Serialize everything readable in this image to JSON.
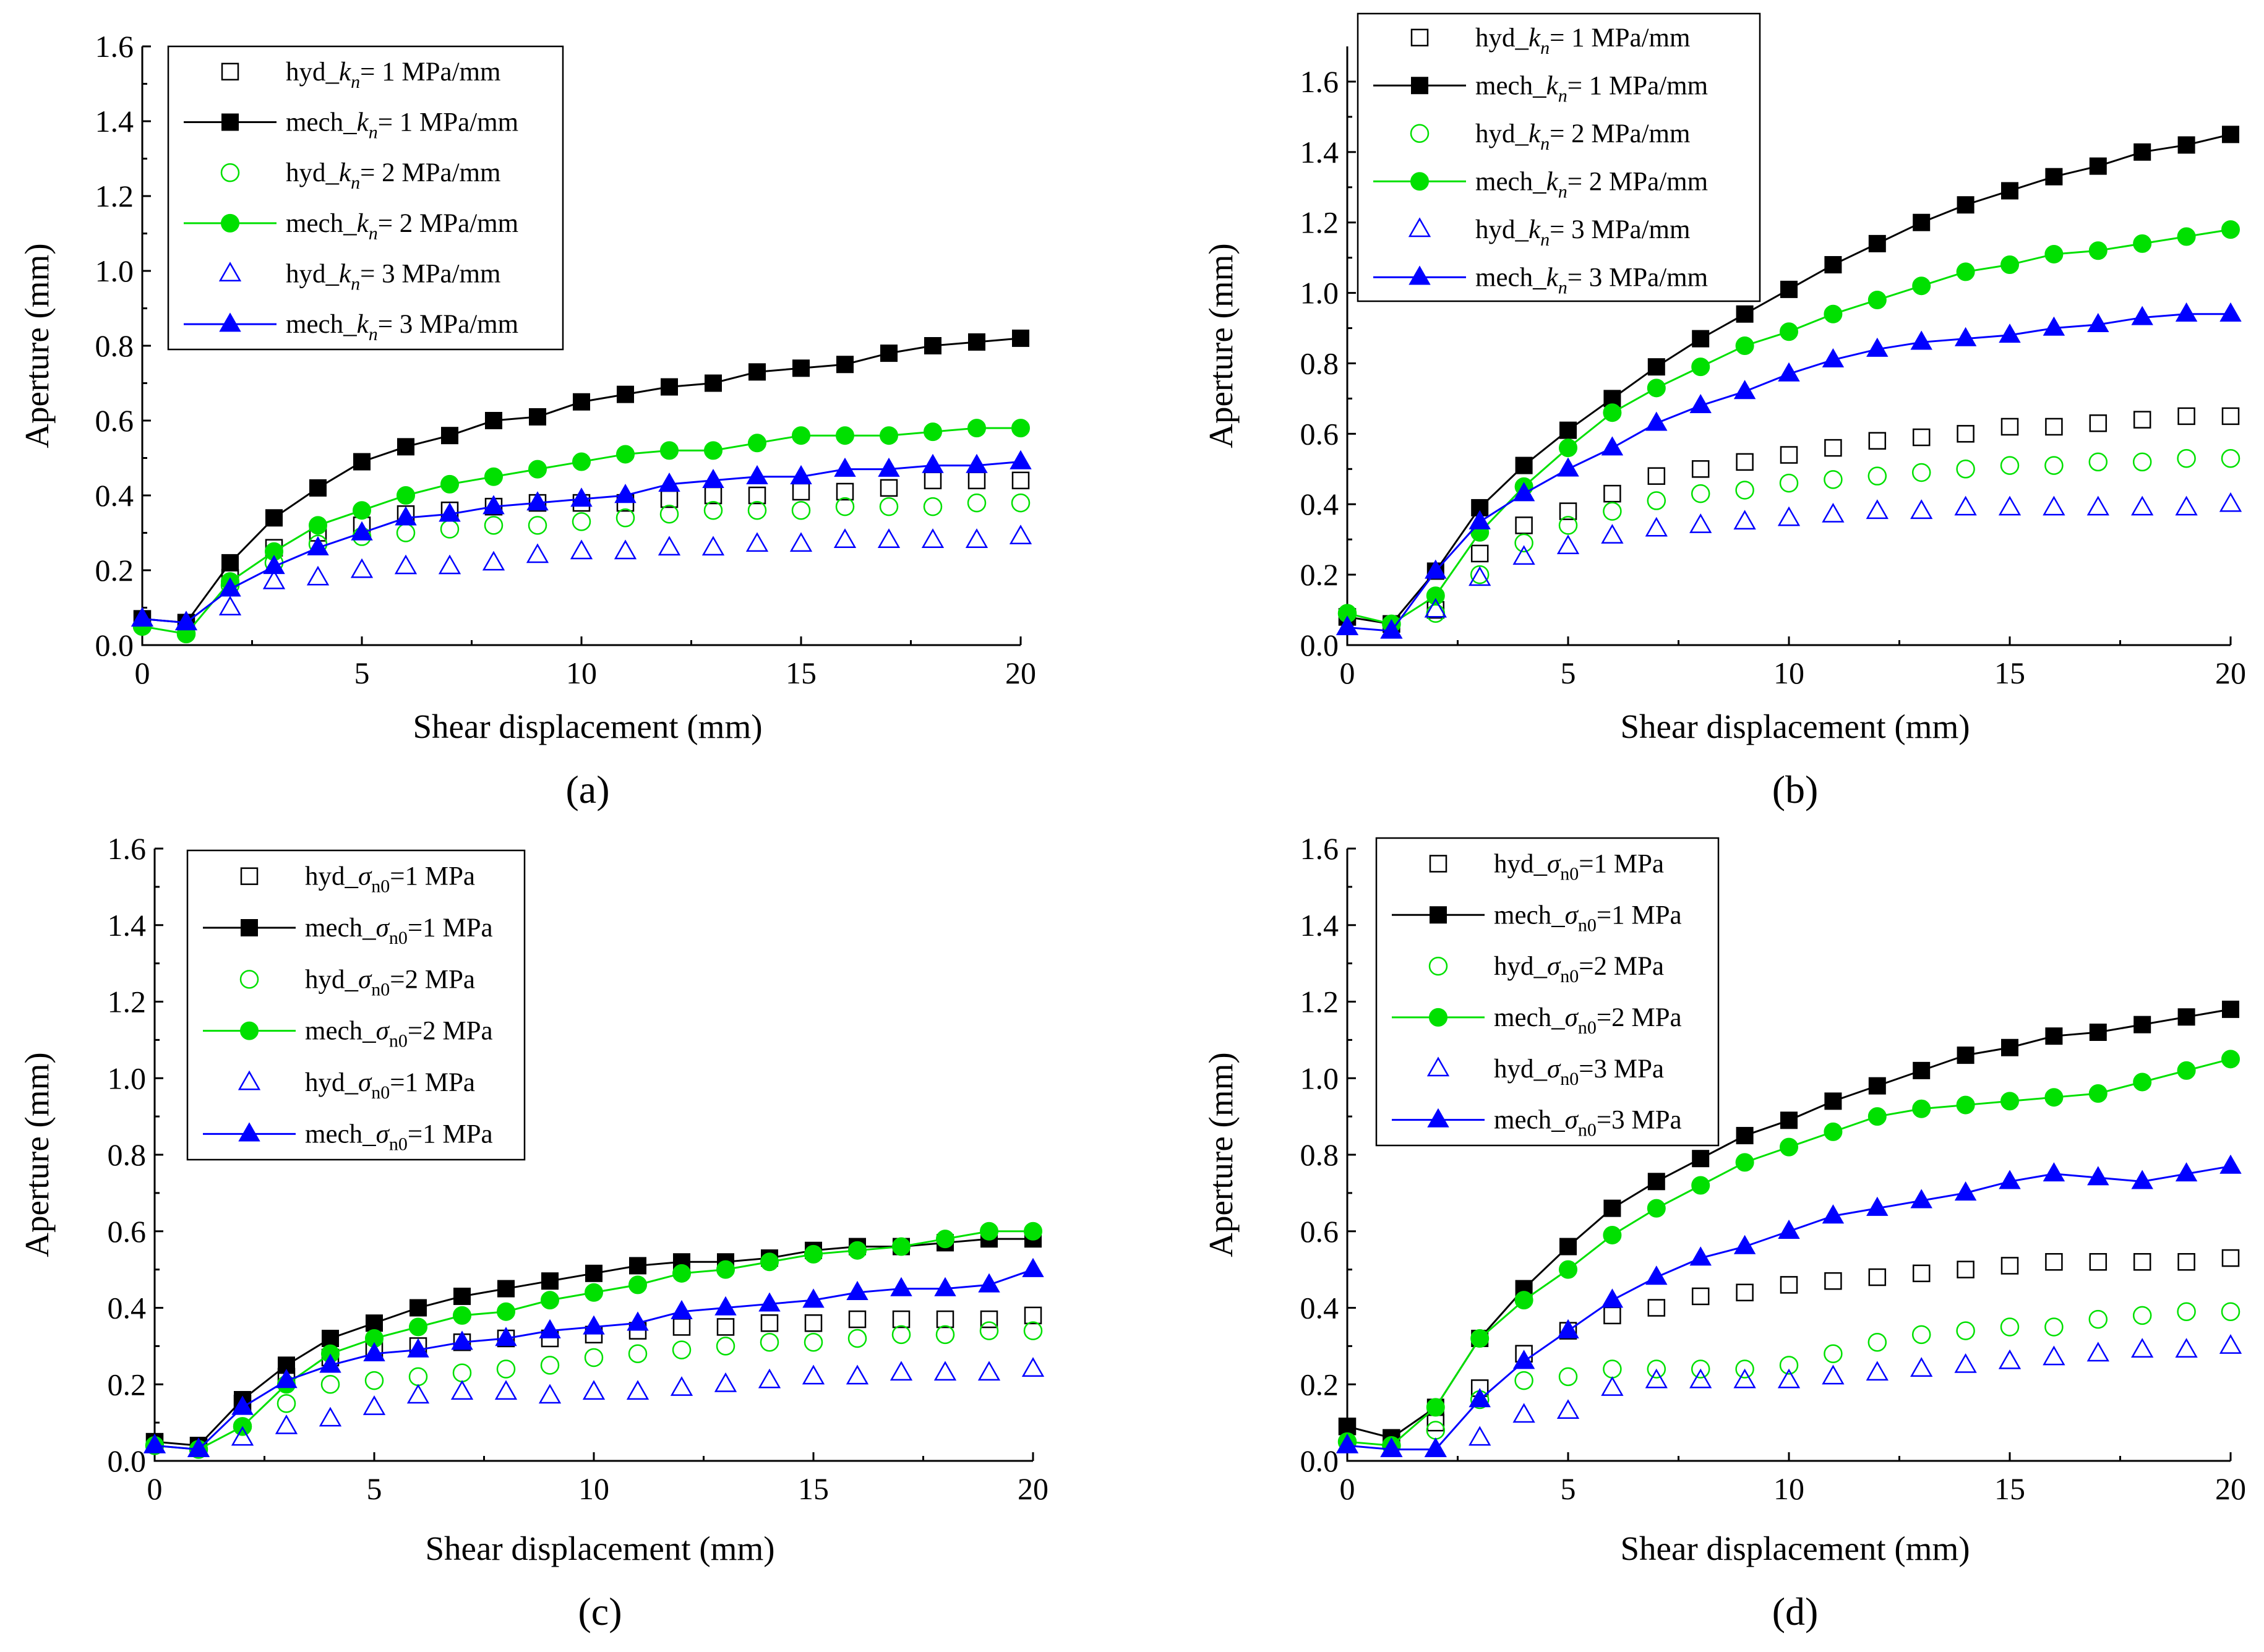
{
  "figure": {
    "colors": {
      "black": "#000000",
      "green": "#00e000",
      "blue": "#0000ff"
    }
  },
  "chart_data": [
    {
      "panel_label": "(a)",
      "type": "line",
      "xlabel": "Shear displacement (mm)",
      "ylabel": "Aperture (mm)",
      "xlim": [
        0,
        20
      ],
      "ylim": [
        0,
        1.6
      ],
      "xticks": [
        "0",
        "5",
        "10",
        "15",
        "20"
      ],
      "yticks": [
        "0.0",
        "0.2",
        "0.4",
        "0.6",
        "0.8",
        "1.0",
        "1.2",
        "1.4",
        "1.6"
      ],
      "x": [
        0,
        1,
        2,
        3,
        4,
        5,
        6,
        7,
        8,
        9,
        10,
        11,
        12,
        13,
        14,
        15,
        16,
        17,
        18,
        19,
        20
      ],
      "legend_position": "top-left",
      "series": [
        {
          "label_prefix": "hyd_",
          "label_var": "k",
          "label_sub": "n",
          "label_suffix": "= 1 MPa/mm",
          "color": "#000000",
          "marker": "square",
          "filled": false,
          "line": false,
          "values": [
            0.07,
            0.06,
            0.18,
            0.26,
            0.3,
            0.32,
            0.35,
            0.36,
            0.37,
            0.38,
            0.38,
            0.38,
            0.39,
            0.4,
            0.4,
            0.41,
            0.41,
            0.42,
            0.44,
            0.44,
            0.44
          ]
        },
        {
          "label_prefix": "mech_",
          "label_var": "k",
          "label_sub": "n",
          "label_suffix": "= 1 MPa/mm",
          "color": "#000000",
          "marker": "square",
          "filled": true,
          "line": true,
          "values": [
            0.07,
            0.06,
            0.22,
            0.34,
            0.42,
            0.49,
            0.53,
            0.56,
            0.6,
            0.61,
            0.65,
            0.67,
            0.69,
            0.7,
            0.73,
            0.74,
            0.75,
            0.78,
            0.8,
            0.81,
            0.82
          ]
        },
        {
          "label_prefix": " hyd_",
          "label_var": "k",
          "label_sub": "n",
          "label_suffix": "= 2 MPa/mm",
          "color": "#00e000",
          "marker": "circle",
          "filled": false,
          "line": false,
          "values": [
            0.05,
            0.03,
            0.16,
            0.22,
            0.27,
            0.29,
            0.3,
            0.31,
            0.32,
            0.32,
            0.33,
            0.34,
            0.35,
            0.36,
            0.36,
            0.36,
            0.37,
            0.37,
            0.37,
            0.38,
            0.38
          ]
        },
        {
          "label_prefix": "mech_",
          "label_var": "k",
          "label_sub": "n",
          "label_suffix": "= 2 MPa/mm",
          "color": "#00e000",
          "marker": "circle",
          "filled": true,
          "line": true,
          "values": [
            0.05,
            0.03,
            0.17,
            0.25,
            0.32,
            0.36,
            0.4,
            0.43,
            0.45,
            0.47,
            0.49,
            0.51,
            0.52,
            0.52,
            0.54,
            0.56,
            0.56,
            0.56,
            0.57,
            0.58,
            0.58
          ]
        },
        {
          "label_prefix": "hyd_",
          "label_var": "k",
          "label_sub": "n",
          "label_suffix": "= 3 MPa/mm",
          "color": "#0000ff",
          "marker": "triangle",
          "filled": false,
          "line": false,
          "values": [
            0.07,
            0.06,
            0.1,
            0.17,
            0.18,
            0.2,
            0.21,
            0.21,
            0.22,
            0.24,
            0.25,
            0.25,
            0.26,
            0.26,
            0.27,
            0.27,
            0.28,
            0.28,
            0.28,
            0.28,
            0.29
          ]
        },
        {
          "label_prefix": "mech_",
          "label_var": "k",
          "label_sub": "n",
          "label_suffix": "= 3 MPa/mm",
          "color": "#0000ff",
          "marker": "triangle",
          "filled": true,
          "line": true,
          "values": [
            0.07,
            0.06,
            0.15,
            0.21,
            0.26,
            0.3,
            0.34,
            0.35,
            0.37,
            0.38,
            0.39,
            0.4,
            0.43,
            0.44,
            0.45,
            0.45,
            0.47,
            0.47,
            0.48,
            0.48,
            0.49
          ]
        }
      ]
    },
    {
      "panel_label": "(b)",
      "type": "line",
      "xlabel": "Shear displacement (mm)",
      "ylabel": "Aperture (mm)",
      "xlim": [
        0,
        20
      ],
      "ylim": [
        0,
        1.7
      ],
      "xticks": [
        "0",
        "5",
        "10",
        "15",
        "20"
      ],
      "yticks": [
        "0.0",
        "0.2",
        "0.4",
        "0.6",
        "0.8",
        "1.0",
        "1.2",
        "1.4",
        "1.6"
      ],
      "x": [
        0,
        1,
        2,
        3,
        4,
        5,
        6,
        7,
        8,
        9,
        10,
        11,
        12,
        13,
        14,
        15,
        16,
        17,
        18,
        19,
        20
      ],
      "legend_position": "top-left",
      "series": [
        {
          "label_prefix": "hyd_",
          "label_var": "k",
          "label_sub": "n",
          "label_suffix": "= 1 MPa/mm",
          "color": "#000000",
          "marker": "square",
          "filled": false,
          "line": false,
          "values": [
            0.08,
            0.06,
            0.1,
            0.26,
            0.34,
            0.38,
            0.43,
            0.48,
            0.5,
            0.52,
            0.54,
            0.56,
            0.58,
            0.59,
            0.6,
            0.62,
            0.62,
            0.63,
            0.64,
            0.65,
            0.65
          ]
        },
        {
          "label_prefix": "mech_",
          "label_var": "k",
          "label_sub": "n",
          "label_suffix": "= 1 MPa/mm",
          "color": "#000000",
          "marker": "square",
          "filled": true,
          "line": true,
          "values": [
            0.08,
            0.06,
            0.21,
            0.39,
            0.51,
            0.61,
            0.7,
            0.79,
            0.87,
            0.94,
            1.01,
            1.08,
            1.14,
            1.2,
            1.25,
            1.29,
            1.33,
            1.36,
            1.4,
            1.42,
            1.45
          ]
        },
        {
          "label_prefix": "hyd_",
          "label_var": "k",
          "label_sub": "n",
          "label_suffix": "= 2 MPa/mm",
          "color": "#00e000",
          "marker": "circle",
          "filled": false,
          "line": false,
          "values": [
            0.09,
            0.06,
            0.09,
            0.2,
            0.29,
            0.34,
            0.38,
            0.41,
            0.43,
            0.44,
            0.46,
            0.47,
            0.48,
            0.49,
            0.5,
            0.51,
            0.51,
            0.52,
            0.52,
            0.53,
            0.53
          ]
        },
        {
          "label_prefix": "mech_",
          "label_var": "k",
          "label_sub": "n",
          "label_suffix": "= 2 MPa/mm",
          "color": "#00e000",
          "marker": "circle",
          "filled": true,
          "line": true,
          "values": [
            0.09,
            0.06,
            0.14,
            0.32,
            0.45,
            0.56,
            0.66,
            0.73,
            0.79,
            0.85,
            0.89,
            0.94,
            0.98,
            1.02,
            1.06,
            1.08,
            1.11,
            1.12,
            1.14,
            1.16,
            1.18
          ]
        },
        {
          "label_prefix": "hyd_",
          "label_var": "k",
          "label_sub": "n",
          "label_suffix": "= 3 MPa/mm",
          "color": "#0000ff",
          "marker": "triangle",
          "filled": false,
          "line": false,
          "values": [
            0.05,
            0.04,
            0.1,
            0.19,
            0.25,
            0.28,
            0.31,
            0.33,
            0.34,
            0.35,
            0.36,
            0.37,
            0.38,
            0.38,
            0.39,
            0.39,
            0.39,
            0.39,
            0.39,
            0.39,
            0.4
          ]
        },
        {
          "label_prefix": "mech_",
          "label_var": "k",
          "label_sub": "n",
          "label_suffix": "= 3 MPa/mm",
          "color": "#0000ff",
          "marker": "triangle",
          "filled": true,
          "line": true,
          "values": [
            0.05,
            0.04,
            0.21,
            0.35,
            0.43,
            0.5,
            0.56,
            0.63,
            0.68,
            0.72,
            0.77,
            0.81,
            0.84,
            0.86,
            0.87,
            0.88,
            0.9,
            0.91,
            0.93,
            0.94,
            0.94
          ]
        }
      ]
    },
    {
      "panel_label": "(c)",
      "type": "line",
      "xlabel": "Shear displacement (mm)",
      "ylabel": "Aperture (mm)",
      "xlim": [
        0,
        20
      ],
      "ylim": [
        0,
        1.6
      ],
      "xticks": [
        "0",
        "5",
        "10",
        "15",
        "20"
      ],
      "yticks": [
        "0.0",
        "0.2",
        "0.4",
        "0.6",
        "0.8",
        "1.0",
        "1.2",
        "1.4",
        "1.6"
      ],
      "x": [
        0,
        1,
        2,
        3,
        4,
        5,
        6,
        7,
        8,
        9,
        10,
        11,
        12,
        13,
        14,
        15,
        16,
        17,
        18,
        19,
        20
      ],
      "legend_position": "top-left",
      "series": [
        {
          "label_prefix": "hyd_",
          "label_var": "σ",
          "label_sub": "n0",
          "label_suffix": "=1 MPa",
          "color": "#000000",
          "marker": "square",
          "filled": false,
          "line": false,
          "values": [
            0.05,
            0.04,
            0.15,
            0.22,
            0.27,
            0.29,
            0.3,
            0.31,
            0.32,
            0.32,
            0.33,
            0.34,
            0.35,
            0.35,
            0.36,
            0.36,
            0.37,
            0.37,
            0.37,
            0.37,
            0.38
          ]
        },
        {
          "label_prefix": "mech_",
          "label_var": "σ",
          "label_sub": "n0",
          "label_suffix": "=1 MPa",
          "color": "#000000",
          "marker": "square",
          "filled": true,
          "line": true,
          "values": [
            0.05,
            0.04,
            0.16,
            0.25,
            0.32,
            0.36,
            0.4,
            0.43,
            0.45,
            0.47,
            0.49,
            0.51,
            0.52,
            0.52,
            0.53,
            0.55,
            0.56,
            0.56,
            0.57,
            0.58,
            0.58
          ]
        },
        {
          "label_prefix": "hyd_",
          "label_var": "σ",
          "label_sub": "n0",
          "label_suffix": "=2 MPa",
          "color": "#00e000",
          "marker": "circle",
          "filled": false,
          "line": false,
          "values": [
            0.04,
            0.03,
            0.09,
            0.15,
            0.2,
            0.21,
            0.22,
            0.23,
            0.24,
            0.25,
            0.27,
            0.28,
            0.29,
            0.3,
            0.31,
            0.31,
            0.32,
            0.33,
            0.33,
            0.34,
            0.34
          ]
        },
        {
          "label_prefix": "mech_",
          "label_var": "σ",
          "label_sub": "n0",
          "label_suffix": "=2 MPa",
          "color": "#00e000",
          "marker": "circle",
          "filled": true,
          "line": true,
          "values": [
            0.04,
            0.03,
            0.09,
            0.2,
            0.28,
            0.32,
            0.35,
            0.38,
            0.39,
            0.42,
            0.44,
            0.46,
            0.49,
            0.5,
            0.52,
            0.54,
            0.55,
            0.56,
            0.58,
            0.6,
            0.6
          ]
        },
        {
          "label_prefix": "hyd_",
          "label_var": "σ",
          "label_sub": "n0",
          "label_suffix": "=1 MPa",
          "color": "#0000ff",
          "marker": "triangle",
          "filled": false,
          "line": false,
          "values": [
            0.04,
            0.03,
            0.06,
            0.09,
            0.11,
            0.14,
            0.17,
            0.18,
            0.18,
            0.17,
            0.18,
            0.18,
            0.19,
            0.2,
            0.21,
            0.22,
            0.22,
            0.23,
            0.23,
            0.23,
            0.24
          ]
        },
        {
          "label_prefix": "mech_",
          "label_var": "σ",
          "label_sub": "n0",
          "label_suffix": "=1 MPa",
          "color": "#0000ff",
          "marker": "triangle",
          "filled": true,
          "line": true,
          "values": [
            0.04,
            0.03,
            0.14,
            0.21,
            0.25,
            0.28,
            0.29,
            0.31,
            0.32,
            0.34,
            0.35,
            0.36,
            0.39,
            0.4,
            0.41,
            0.42,
            0.44,
            0.45,
            0.45,
            0.46,
            0.5
          ]
        }
      ]
    },
    {
      "panel_label": "(d)",
      "type": "line",
      "xlabel": "Shear displacement (mm)",
      "ylabel": "Aperture (mm)",
      "xlim": [
        0,
        20
      ],
      "ylim": [
        0,
        1.6
      ],
      "xticks": [
        "0",
        "5",
        "10",
        "15",
        "20"
      ],
      "yticks": [
        "0.0",
        "0.2",
        "0.4",
        "0.6",
        "0.8",
        "1.0",
        "1.2",
        "1.4",
        "1.6"
      ],
      "x": [
        0,
        1,
        2,
        3,
        4,
        5,
        6,
        7,
        8,
        9,
        10,
        11,
        12,
        13,
        14,
        15,
        16,
        17,
        18,
        19,
        20
      ],
      "legend_position": "top-left",
      "series": [
        {
          "label_prefix": "hyd_",
          "label_var": "σ",
          "label_sub": "n0",
          "label_suffix": "=1 MPa",
          "color": "#000000",
          "marker": "square",
          "filled": false,
          "line": false,
          "values": [
            0.09,
            0.06,
            0.1,
            0.19,
            0.28,
            0.34,
            0.38,
            0.4,
            0.43,
            0.44,
            0.46,
            0.47,
            0.48,
            0.49,
            0.5,
            0.51,
            0.52,
            0.52,
            0.52,
            0.52,
            0.53
          ]
        },
        {
          "label_prefix": "mech_",
          "label_var": "σ",
          "label_sub": "n0",
          "label_suffix": "=1 MPa",
          "color": "#000000",
          "marker": "square",
          "filled": true,
          "line": true,
          "values": [
            0.09,
            0.06,
            0.14,
            0.32,
            0.45,
            0.56,
            0.66,
            0.73,
            0.79,
            0.85,
            0.89,
            0.94,
            0.98,
            1.02,
            1.06,
            1.08,
            1.11,
            1.12,
            1.14,
            1.16,
            1.18
          ]
        },
        {
          "label_prefix": "hyd_",
          "label_var": "σ",
          "label_sub": "n0",
          "label_suffix": "=2 MPa",
          "color": "#00e000",
          "marker": "circle",
          "filled": false,
          "line": false,
          "values": [
            0.05,
            0.04,
            0.08,
            0.16,
            0.21,
            0.22,
            0.24,
            0.24,
            0.24,
            0.24,
            0.25,
            0.28,
            0.31,
            0.33,
            0.34,
            0.35,
            0.35,
            0.37,
            0.38,
            0.39,
            0.39
          ]
        },
        {
          "label_prefix": "mech_",
          "label_var": "σ",
          "label_sub": "n0",
          "label_suffix": "=2 MPa",
          "color": "#00e000",
          "marker": "circle",
          "filled": true,
          "line": true,
          "values": [
            0.05,
            0.04,
            0.14,
            0.32,
            0.42,
            0.5,
            0.59,
            0.66,
            0.72,
            0.78,
            0.82,
            0.86,
            0.9,
            0.92,
            0.93,
            0.94,
            0.95,
            0.96,
            0.99,
            1.02,
            1.05
          ]
        },
        {
          "label_prefix": "hyd_",
          "label_var": "σ",
          "label_sub": "n0",
          "label_suffix": "=3 MPa",
          "color": "#0000ff",
          "marker": "triangle",
          "filled": false,
          "line": false,
          "values": [
            0.04,
            0.03,
            0.03,
            0.06,
            0.12,
            0.13,
            0.19,
            0.21,
            0.21,
            0.21,
            0.21,
            0.22,
            0.23,
            0.24,
            0.25,
            0.26,
            0.27,
            0.28,
            0.29,
            0.29,
            0.3
          ]
        },
        {
          "label_prefix": "mech_",
          "label_var": "σ",
          "label_sub": "n0",
          "label_suffix": "=3 MPa",
          "color": "#0000ff",
          "marker": "triangle",
          "filled": true,
          "line": true,
          "values": [
            0.04,
            0.03,
            0.03,
            0.16,
            0.26,
            0.34,
            0.42,
            0.48,
            0.53,
            0.56,
            0.6,
            0.64,
            0.66,
            0.68,
            0.7,
            0.73,
            0.75,
            0.74,
            0.73,
            0.75,
            0.77
          ]
        }
      ]
    }
  ]
}
